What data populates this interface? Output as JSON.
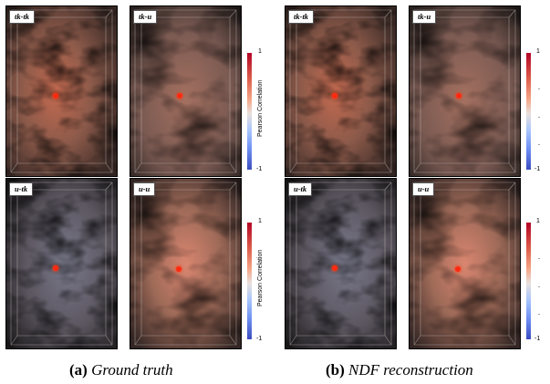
{
  "panels": {
    "a_tk_tk": {
      "label": "tk-tk"
    },
    "a_tk_u": {
      "label": "tk-u"
    },
    "a_u_tk": {
      "label": "u-tk"
    },
    "a_u_u": {
      "label": "u-u"
    },
    "b_tk_tk": {
      "label": "tk-tk"
    },
    "b_tk_u": {
      "label": "tk-u"
    },
    "b_u_tk": {
      "label": "u-tk"
    },
    "b_u_u": {
      "label": "u-u"
    }
  },
  "colorbar": {
    "title": "Pearson Correlation",
    "max_label": "1",
    "min_label": "-1",
    "colors": [
      "#b40426",
      "#f4a688",
      "#e8e0dc",
      "#aac7fd",
      "#3b4cc0"
    ]
  },
  "captions": {
    "a_tag": "(a)",
    "a_text": "Ground truth",
    "b_tag": "(b)",
    "b_text": "NDF reconstruction"
  }
}
